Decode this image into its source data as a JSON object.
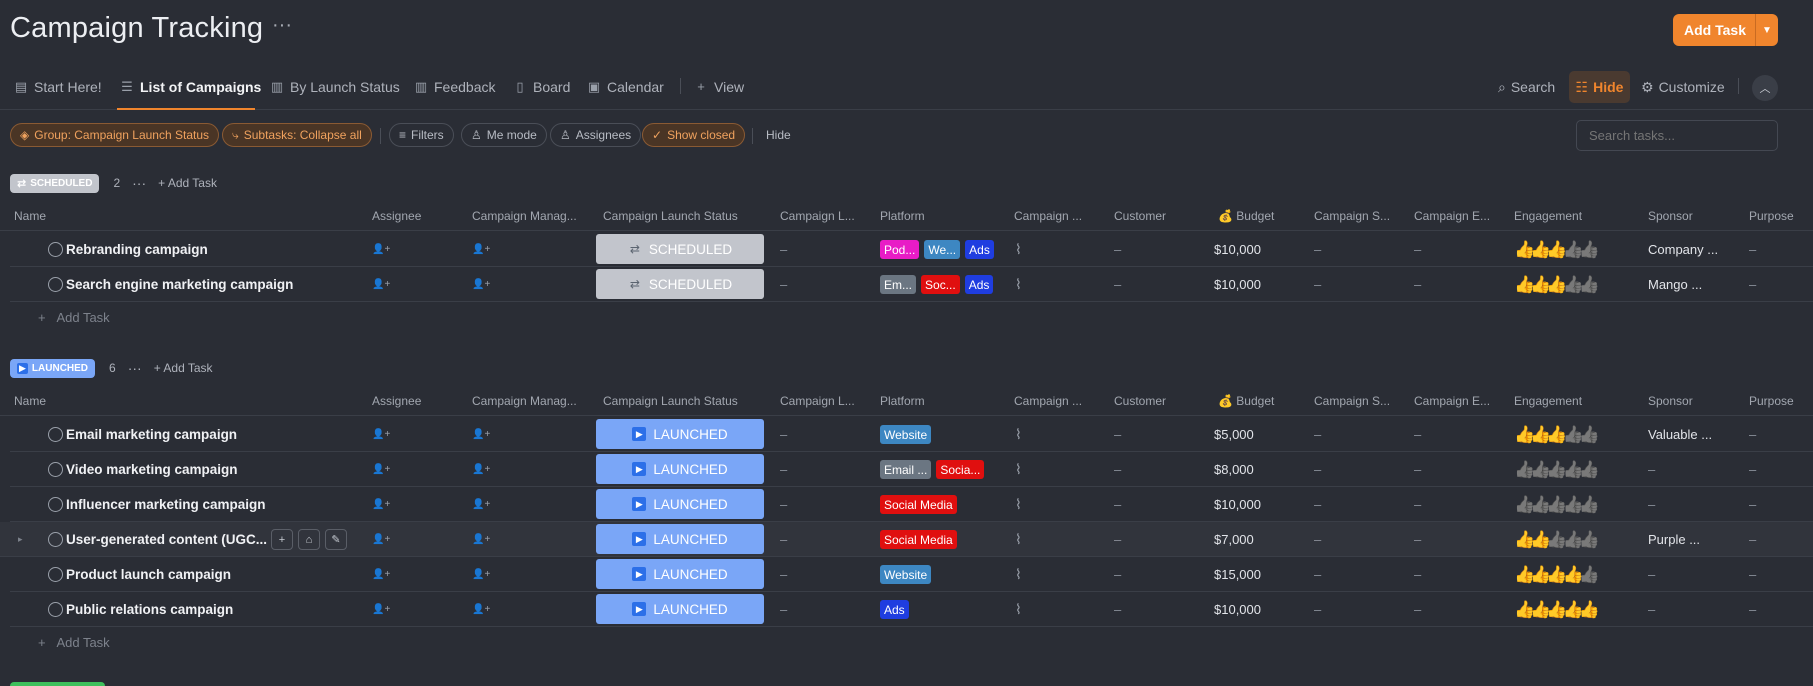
{
  "header": {
    "title": "Campaign Tracking",
    "more": "···",
    "add_task": "Add Task"
  },
  "tabs": [
    {
      "label": "Start Here!",
      "icon": "doc-icon"
    },
    {
      "label": "List of Campaigns",
      "icon": "list-icon"
    },
    {
      "label": "By Launch Status",
      "icon": "board-icon"
    },
    {
      "label": "Feedback",
      "icon": "board-icon"
    },
    {
      "label": "Board",
      "icon": "board-icon"
    },
    {
      "label": "Calendar",
      "icon": "calendar-icon"
    },
    {
      "label": "View",
      "icon": "plus-icon"
    }
  ],
  "toolbar": {
    "search": "Search",
    "hide": "Hide",
    "customize": "Customize"
  },
  "filters": {
    "group": "Group: Campaign Launch Status",
    "subtasks": "Subtasks: Collapse all",
    "filters": "Filters",
    "me_mode": "Me mode",
    "assignees": "Assignees",
    "show_closed": "Show closed",
    "hide": "Hide",
    "search_placeholder": "Search tasks..."
  },
  "columns": [
    "Name",
    "Assignee",
    "Campaign Manag...",
    "Campaign Launch Status",
    "Campaign L...",
    "Platform",
    "Campaign ...",
    "Customer",
    "Budget",
    "Campaign S...",
    "Campaign E...",
    "Engagement",
    "Sponsor",
    "Purpose"
  ],
  "groups": {
    "scheduled": {
      "label": "SCHEDULED",
      "count": "2",
      "more": "···",
      "add_task": "Add Task",
      "add_row": "Add Task",
      "color": "#c2c5cc",
      "rows": [
        {
          "name": "Rebranding campaign",
          "status": "SCHEDULED",
          "platform": [
            {
              "t": "Pod...",
              "c": "#e81cc6"
            },
            {
              "t": "We...",
              "c": "#3d87c2"
            },
            {
              "t": "Ads",
              "c": "#1f3de0"
            }
          ],
          "customer": "–",
          "budget": "$10,000",
          "engagement": 3,
          "sponsor": "Company ...",
          "purpose": "–"
        },
        {
          "name": "Search engine marketing campaign",
          "status": "SCHEDULED",
          "platform": [
            {
              "t": "Em...",
              "c": "#6b7682"
            },
            {
              "t": "Soc...",
              "c": "#e00f0f"
            },
            {
              "t": "Ads",
              "c": "#1f3de0"
            }
          ],
          "customer": "–",
          "budget": "$10,000",
          "engagement": 3,
          "sponsor": "Mango ...",
          "purpose": "–"
        }
      ]
    },
    "launched": {
      "label": "LAUNCHED",
      "count": "6",
      "more": "···",
      "add_task": "Add Task",
      "add_row": "Add Task",
      "color": "#7aa6f7",
      "rows": [
        {
          "name": "Email marketing campaign",
          "status": "LAUNCHED",
          "platform": [
            {
              "t": "Website",
              "c": "#3d87c2"
            }
          ],
          "customer": "–",
          "budget": "$5,000",
          "engagement": 3,
          "sponsor": "Valuable ...",
          "purpose": "–"
        },
        {
          "name": "Video marketing campaign",
          "status": "LAUNCHED",
          "platform": [
            {
              "t": "Email ...",
              "c": "#6b7682"
            },
            {
              "t": "Socia...",
              "c": "#e00f0f"
            }
          ],
          "customer": "–",
          "budget": "$8,000",
          "engagement": 0,
          "sponsor": "–",
          "purpose": "–"
        },
        {
          "name": "Influencer marketing campaign",
          "status": "LAUNCHED",
          "platform": [
            {
              "t": "Social Media",
              "c": "#e00f0f"
            }
          ],
          "customer": "–",
          "budget": "$10,000",
          "engagement": 0,
          "sponsor": "–",
          "purpose": "–"
        },
        {
          "name": "User-generated content (UGC...",
          "status": "LAUNCHED",
          "platform": [
            {
              "t": "Social Media",
              "c": "#e00f0f"
            }
          ],
          "customer": "–",
          "budget": "$7,000",
          "engagement": 2,
          "sponsor": "Purple ...",
          "purpose": "–"
        },
        {
          "name": "Product launch campaign",
          "status": "LAUNCHED",
          "platform": [
            {
              "t": "Website",
              "c": "#3d87c2"
            }
          ],
          "customer": "–",
          "budget": "$15,000",
          "engagement": 4,
          "sponsor": "–",
          "purpose": "–"
        },
        {
          "name": "Public relations campaign",
          "status": "LAUNCHED",
          "platform": [
            {
              "t": "Ads",
              "c": "#1f3de0"
            }
          ],
          "customer": "–",
          "budget": "$10,000",
          "engagement": 5,
          "sponsor": "–",
          "purpose": "–"
        }
      ]
    }
  },
  "dash": "–",
  "colors": {
    "accent": "#f0852d",
    "background": "#2a2d35",
    "launched": "#7aa6f7",
    "scheduled": "#c2c5cc"
  }
}
